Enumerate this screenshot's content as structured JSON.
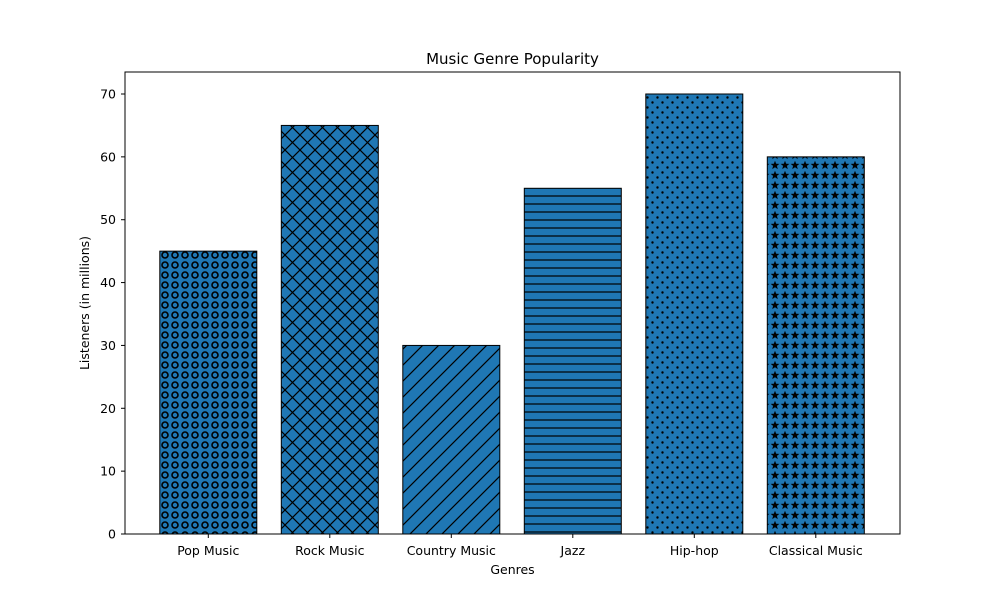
{
  "chart_data": {
    "type": "bar",
    "title": "Music Genre Popularity",
    "xlabel": "Genres",
    "ylabel": "Listeners (in millions)",
    "categories": [
      "Pop Music",
      "Rock Music",
      "Country Music",
      "Jazz",
      "Hip-hop",
      "Classical Music"
    ],
    "values": [
      45,
      65,
      30,
      55,
      70,
      60
    ],
    "ylim": [
      0,
      73.5
    ],
    "yticks": [
      "0",
      "10",
      "20",
      "30",
      "40",
      "50",
      "60",
      "70"
    ],
    "bar_color": "#1f77b4",
    "hatch_color": "#000000",
    "hatches": [
      "rings",
      "crosshatch",
      "diagonal",
      "horizontal",
      "dots",
      "stars"
    ],
    "grid": false,
    "legend": "none"
  }
}
